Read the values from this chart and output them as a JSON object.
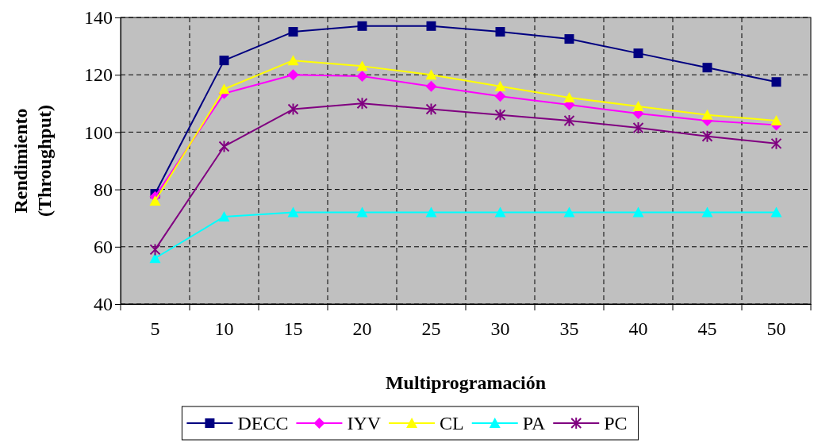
{
  "chart_data": {
    "type": "line",
    "xlabel": "Multiprogramación",
    "ylabel": "Rendimiento (Throughput)",
    "categories": [
      "5",
      "10",
      "15",
      "20",
      "25",
      "30",
      "35",
      "40",
      "45",
      "50"
    ],
    "ylim": [
      40,
      140
    ],
    "yticks": [
      40,
      60,
      80,
      100,
      120,
      140
    ],
    "grid": true,
    "legend": "bottom",
    "series": [
      {
        "name": "DECC",
        "color": "#000080",
        "marker": "square",
        "values": [
          78.5,
          125,
          135,
          137,
          137,
          135,
          132.5,
          127.5,
          122.5,
          117.5
        ]
      },
      {
        "name": "IYV",
        "color": "#ff00ff",
        "marker": "diamond",
        "values": [
          77.5,
          113.5,
          120,
          119.5,
          116,
          112.5,
          109.5,
          106.5,
          104,
          102.5
        ]
      },
      {
        "name": "CL",
        "color": "#ffff00",
        "marker": "triangle",
        "values": [
          76,
          115,
          125,
          123,
          120,
          116,
          112,
          109,
          106,
          104
        ]
      },
      {
        "name": "PA",
        "color": "#00ffff",
        "marker": "triangle",
        "values": [
          56,
          70.5,
          72,
          72,
          72,
          72,
          72,
          72,
          72,
          72
        ]
      },
      {
        "name": "PC",
        "color": "#800080",
        "marker": "cross",
        "values": [
          59,
          95,
          108,
          110,
          108,
          106,
          104,
          101.5,
          98.5,
          96
        ]
      }
    ]
  }
}
